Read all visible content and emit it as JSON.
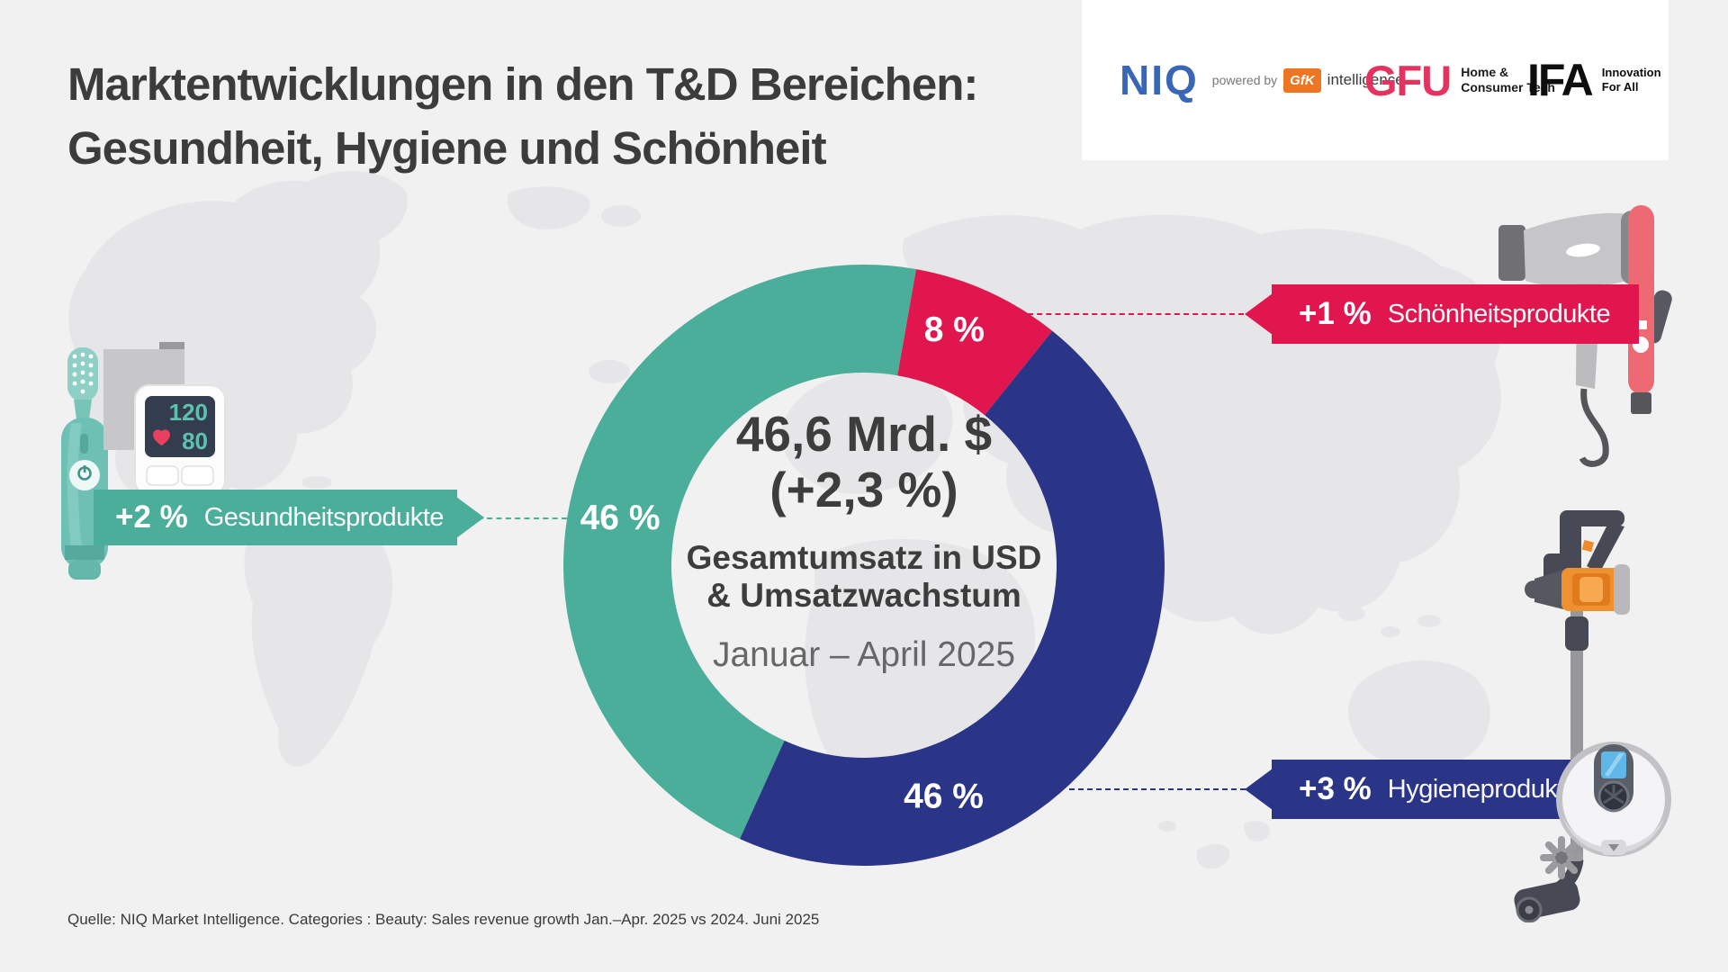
{
  "title": {
    "line1": "Marktentwicklungen in den T&D Bereichen:",
    "line2": "Gesundheit, Hygiene und Schönheit"
  },
  "logos": {
    "niq": {
      "wordmark": "NIQ",
      "powered_by": "powered by",
      "gfk": "GfK",
      "intelligence": "intelligence"
    },
    "gfu": {
      "wordmark": "GFU",
      "tagline_line1": "Home &",
      "tagline_line2": "Consumer Tech"
    },
    "ifa": {
      "wordmark": "IFA",
      "tagline_line1": "Innovation",
      "tagline_line2": "For All"
    }
  },
  "colors": {
    "background": "#f1f1f2",
    "map": "#e6e6e8",
    "niq_blue": "#3a67b5",
    "gfk_orange": "#ee7623",
    "gfu_red": "#e4335f"
  },
  "chart_data": {
    "type": "donut",
    "title": "Gesamtumsatz in USD & Umsatzwachstum",
    "center": {
      "value": "46,6 Mrd. $",
      "growth": "(+2,3 %)",
      "subtitle_line1": "Gesamtumsatz in USD",
      "subtitle_line2": "& Umsatzwachstum",
      "period": "Januar – April 2025"
    },
    "start_angle_deg": 204.4,
    "segments": [
      {
        "id": "gesundheit",
        "label": "Gesundheitsprodukte",
        "share_pct": 46,
        "share_label": "46 %",
        "growth": "+2 %",
        "color": "#4bae9b",
        "label_angle_deg": 281,
        "label_radius": 276
      },
      {
        "id": "schoenheit",
        "label": "Schönheitsprodukte",
        "share_pct": 8,
        "share_label": "8 %",
        "growth": "+1 %",
        "color": "#e2164e",
        "label_angle_deg": 21,
        "label_radius": 280
      },
      {
        "id": "hygiene",
        "label": "Hygieneprodukte",
        "share_pct": 46,
        "share_label": "46 %",
        "growth": "+3 %",
        "color": "#2b3588",
        "label_angle_deg": 161,
        "label_radius": 272
      }
    ]
  },
  "illustrations": {
    "bp_monitor": {
      "systolic": "120",
      "diastolic": "80"
    }
  },
  "source": "Quelle: NIQ Market Intelligence. Categories : Beauty: Sales revenue growth Jan.–Apr. 2025 vs 2024. Juni 2025"
}
